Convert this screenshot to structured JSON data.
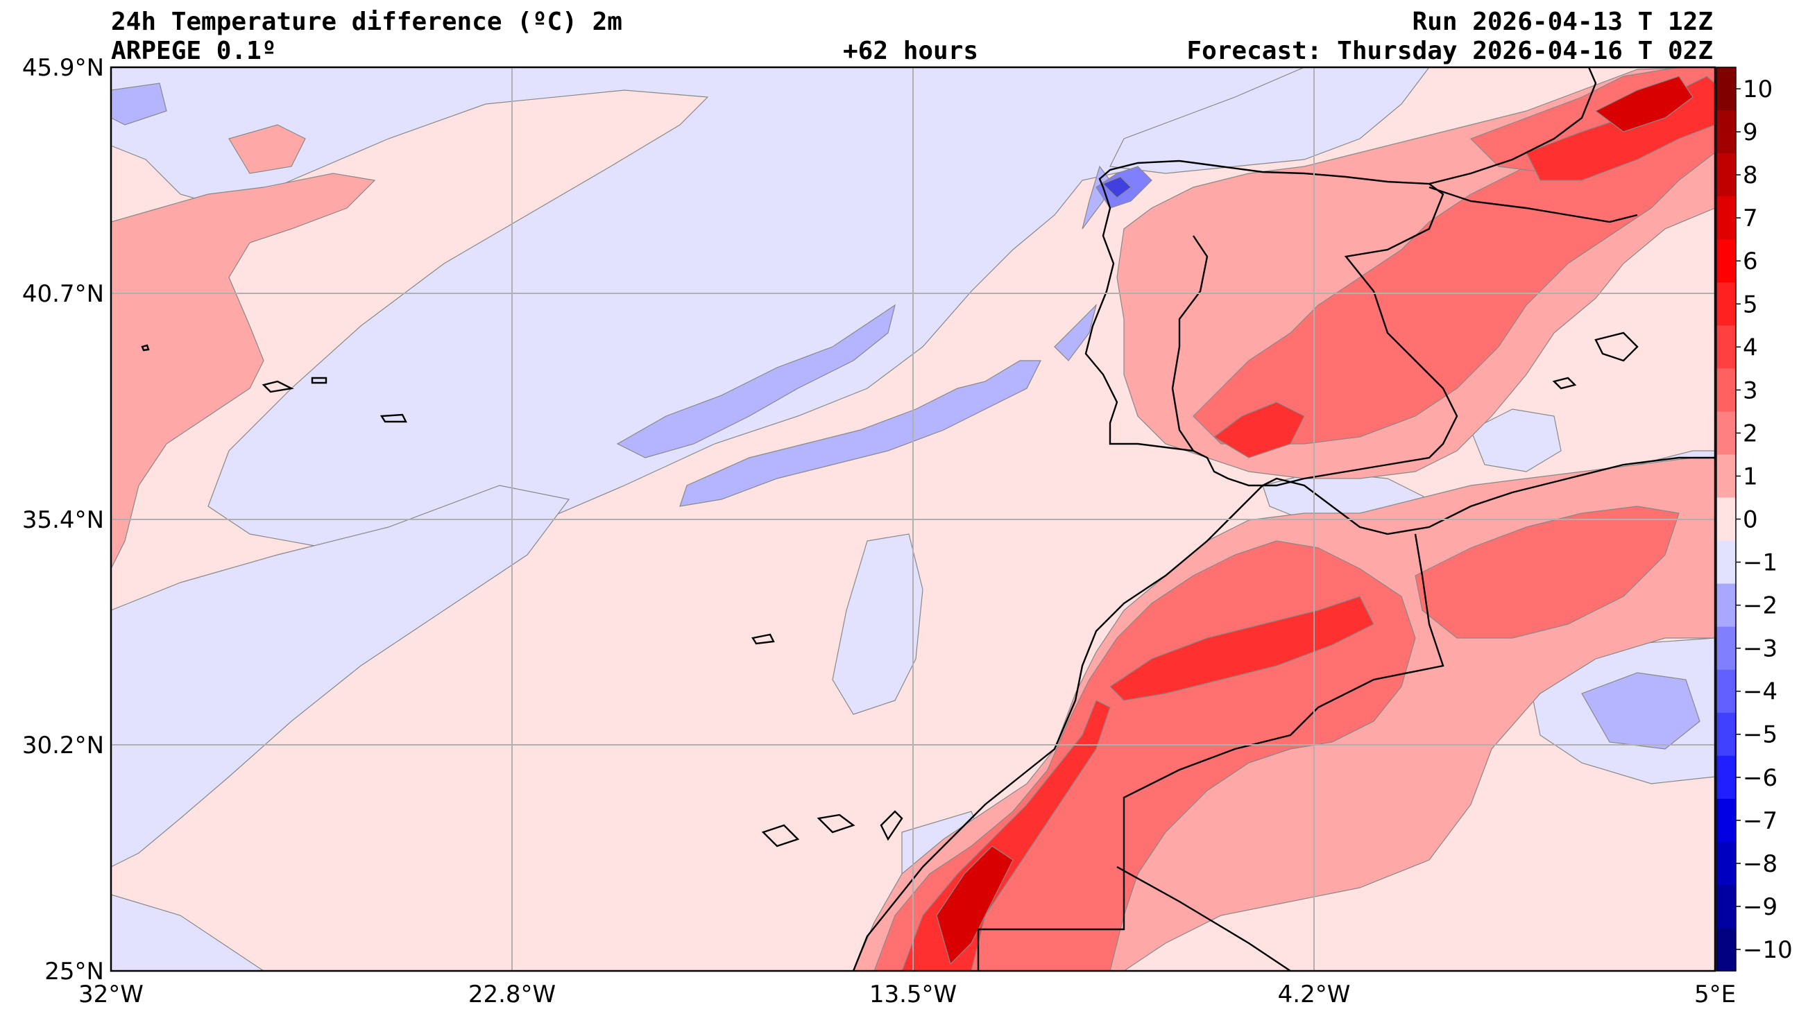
{
  "header": {
    "title": "24h Temperature difference (ºC) 2m",
    "model": "ARPEGE 0.1º",
    "lead_time": "+62 hours",
    "run": "Run 2026-04-13 T 12Z",
    "forecast": "Forecast: Thursday 2026-04-16 T 02Z"
  },
  "axes": {
    "lat_labels": [
      "45.9°N",
      "40.7°N",
      "35.4°N",
      "30.2°N",
      "25°N"
    ],
    "lon_labels": [
      "32°W",
      "22.8°W",
      "13.5°W",
      "4.2°W",
      "5°E"
    ]
  },
  "colorbar": {
    "tick_labels": [
      "10",
      "9",
      "8",
      "7",
      "6",
      "5",
      "4",
      "3",
      "2",
      "1",
      "0",
      "−1",
      "−2",
      "−3",
      "−4",
      "−5",
      "−6",
      "−7",
      "−8",
      "−9",
      "−10"
    ],
    "colors": [
      "#800000",
      "#a00000",
      "#c00000",
      "#e00000",
      "#ff0000",
      "#ff2020",
      "#ff4040",
      "#ff6060",
      "#ff8080",
      "#ffa8a8",
      "#ffe2e2",
      "#e2e2ff",
      "#a8a8ff",
      "#8080ff",
      "#6060ff",
      "#4040ff",
      "#2020ff",
      "#0000e0",
      "#0000c0",
      "#0000a0",
      "#000080"
    ]
  },
  "palette": {
    "warm_1": "#ffe2e2",
    "warm_2": "#ffa8a8",
    "warm_3": "#ff7070",
    "warm_4": "#ff3030",
    "warm_5": "#d80000",
    "cool_1": "#e2e2ff",
    "cool_2": "#b4b4ff",
    "cool_3": "#8080ff",
    "cool_4": "#4040e0"
  }
}
